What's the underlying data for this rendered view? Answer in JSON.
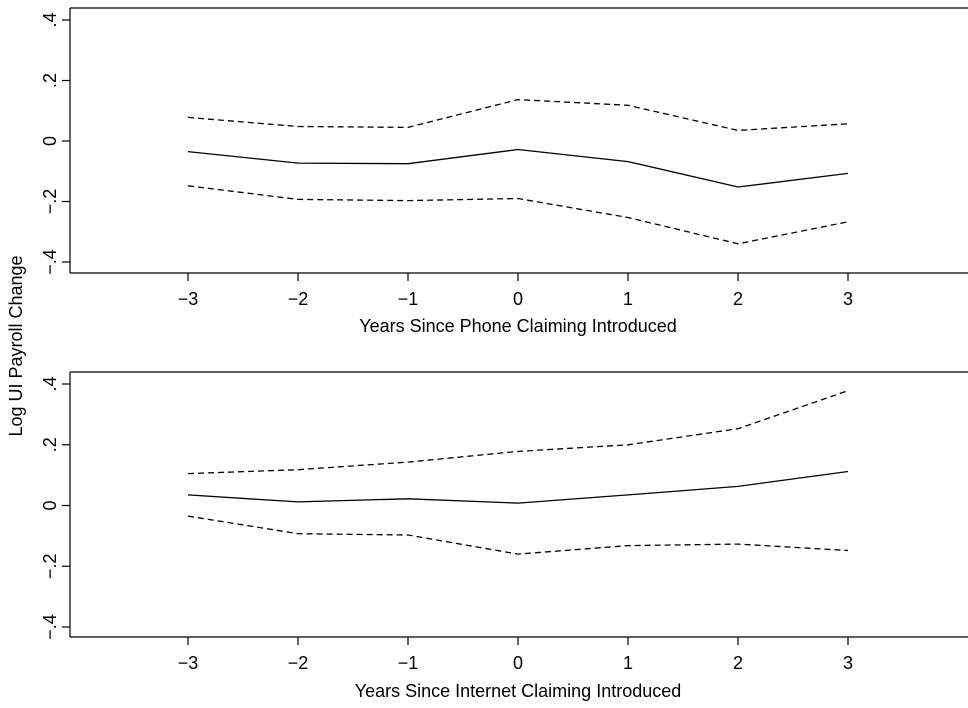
{
  "ylabel": "Log UI Payroll Change",
  "chart_data": [
    {
      "type": "line",
      "xlabel": "Years Since Phone Claiming Introduced",
      "x": [
        -3,
        -2,
        -1,
        0,
        1,
        2,
        3
      ],
      "xticks": [
        -3,
        -2,
        -1,
        0,
        1,
        2,
        3
      ],
      "xtick_labels": [
        "−3",
        "−2",
        "−1",
        "0",
        "1",
        "2",
        "3"
      ],
      "xlim": [
        -4.2,
        4.2
      ],
      "yticks": [
        0.4,
        0.2,
        0,
        -0.2,
        -0.4
      ],
      "ytick_labels": [
        ".4",
        ".2",
        "0",
        "−.2",
        "−.4"
      ],
      "ylim": [
        -0.45,
        0.43
      ],
      "grid": false,
      "series": [
        {
          "style": "solid",
          "values": [
            -0.035,
            -0.073,
            -0.075,
            -0.028,
            -0.068,
            -0.152,
            -0.107
          ]
        },
        {
          "style": "dashed",
          "values": [
            0.078,
            0.048,
            0.045,
            0.137,
            0.118,
            0.035,
            0.057
          ]
        },
        {
          "style": "dashed",
          "values": [
            -0.148,
            -0.193,
            -0.197,
            -0.19,
            -0.253,
            -0.34,
            -0.267
          ]
        }
      ]
    },
    {
      "type": "line",
      "xlabel": "Years Since Internet Claiming Introduced",
      "x": [
        -3,
        -2,
        -1,
        0,
        1,
        2,
        3
      ],
      "xticks": [
        -3,
        -2,
        -1,
        0,
        1,
        2,
        3
      ],
      "xtick_labels": [
        "−3",
        "−2",
        "−1",
        "0",
        "1",
        "2",
        "3"
      ],
      "xlim": [
        -4.2,
        4.2
      ],
      "yticks": [
        0.4,
        0.2,
        0,
        -0.2,
        -0.4
      ],
      "ytick_labels": [
        ".4",
        ".2",
        "0",
        "−.2",
        "−.4"
      ],
      "ylim": [
        -0.45,
        0.43
      ],
      "grid": false,
      "series": [
        {
          "style": "solid",
          "values": [
            0.035,
            0.012,
            0.022,
            0.008,
            0.035,
            0.063,
            0.112
          ]
        },
        {
          "style": "dashed",
          "values": [
            0.105,
            0.118,
            0.143,
            0.178,
            0.2,
            0.253,
            0.378
          ]
        },
        {
          "style": "dashed",
          "values": [
            -0.035,
            -0.093,
            -0.097,
            -0.16,
            -0.132,
            -0.127,
            -0.148
          ]
        }
      ]
    }
  ]
}
